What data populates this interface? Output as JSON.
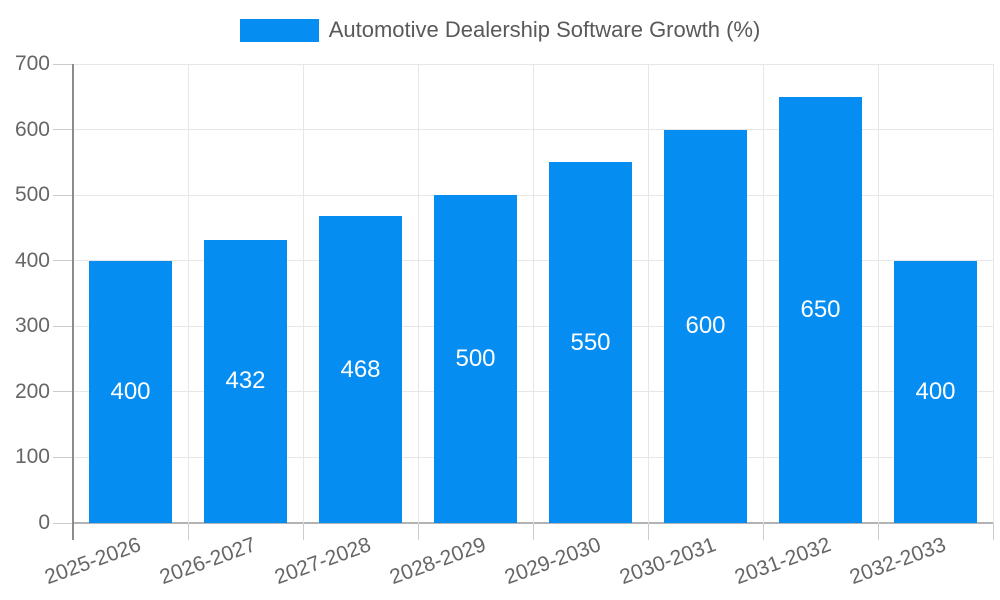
{
  "chart_data": {
    "type": "bar",
    "title": "Automotive Dealership Software Growth (%)",
    "categories": [
      "2025-2026",
      "2026-2027",
      "2027-2028",
      "2028-2029",
      "2029-2030",
      "2030-2031",
      "2031-2032",
      "2032-2033"
    ],
    "values": [
      400,
      432,
      468,
      500,
      550,
      600,
      650,
      400
    ],
    "value_labels": [
      "400",
      "432",
      "468",
      "500",
      "550",
      "600",
      "650",
      "400"
    ],
    "xlabel": "",
    "ylabel": "",
    "ylim": [
      0,
      700
    ],
    "ytick_step": 100,
    "yticks": [
      0,
      100,
      200,
      300,
      400,
      500,
      600,
      700
    ],
    "grid": true,
    "legend_position": "top-center",
    "value_labels_inside_bars": true,
    "colors": {
      "bar": "#058DF2",
      "grid_line": "#e7e7e7",
      "axis_line": "#8c8c8c",
      "baseline": "#b3b3b3",
      "tick_mark": "#cccccc",
      "tick_label": "#666666",
      "legend_text": "#595959",
      "value_label": "#ffffff",
      "background": "#ffffff"
    }
  }
}
